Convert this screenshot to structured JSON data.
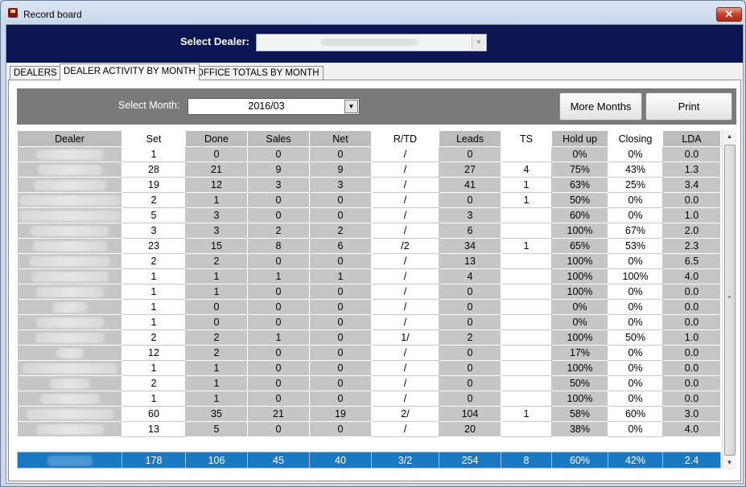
{
  "window": {
    "title": "Record board",
    "close": "✕"
  },
  "header": {
    "dealer_label": "Select Dealer:"
  },
  "tabs": [
    {
      "label": "DEALERS"
    },
    {
      "label": "DEALER ACTIVITY BY MONTH"
    },
    {
      "label": "OFFICE TOTALS BY MONTH"
    }
  ],
  "toolbar": {
    "month_label": "Select Month:",
    "month_value": "2016/03",
    "more_months": "More Months",
    "print": "Print"
  },
  "grid": {
    "columns": [
      "Dealer",
      "Set",
      "Done",
      "Sales",
      "Net",
      "R/TD",
      "Leads",
      "TS",
      "Hold up",
      "Closing",
      "LDA"
    ],
    "rows": [
      [
        "",
        "1",
        "0",
        "0",
        "0",
        "/",
        "0",
        "",
        "0%",
        "0%",
        "0.0"
      ],
      [
        "",
        "28",
        "21",
        "9",
        "9",
        "/",
        "27",
        "4",
        "75%",
        "43%",
        "1.3"
      ],
      [
        "",
        "19",
        "12",
        "3",
        "3",
        "/",
        "41",
        "1",
        "63%",
        "25%",
        "3.4"
      ],
      [
        "",
        "2",
        "1",
        "0",
        "0",
        "/",
        "0",
        "1",
        "50%",
        "0%",
        "0.0"
      ],
      [
        "",
        "5",
        "3",
        "0",
        "0",
        "/",
        "3",
        "",
        "60%",
        "0%",
        "1.0"
      ],
      [
        "",
        "3",
        "3",
        "2",
        "2",
        "/",
        "6",
        "",
        "100%",
        "67%",
        "2.0"
      ],
      [
        "",
        "23",
        "15",
        "8",
        "6",
        "/2",
        "34",
        "1",
        "65%",
        "53%",
        "2.3"
      ],
      [
        "",
        "2",
        "2",
        "0",
        "0",
        "/",
        "13",
        "",
        "100%",
        "0%",
        "6.5"
      ],
      [
        "",
        "1",
        "1",
        "1",
        "1",
        "/",
        "4",
        "",
        "100%",
        "100%",
        "4.0"
      ],
      [
        "",
        "1",
        "1",
        "0",
        "0",
        "/",
        "0",
        "",
        "100%",
        "0%",
        "0.0"
      ],
      [
        "",
        "1",
        "0",
        "0",
        "0",
        "/",
        "0",
        "",
        "0%",
        "0%",
        "0.0"
      ],
      [
        "",
        "1",
        "0",
        "0",
        "0",
        "/",
        "0",
        "",
        "0%",
        "0%",
        "0.0"
      ],
      [
        "",
        "2",
        "2",
        "1",
        "0",
        "1/",
        "2",
        "",
        "100%",
        "50%",
        "1.0"
      ],
      [
        "",
        "12",
        "2",
        "0",
        "0",
        "/",
        "0",
        "",
        "17%",
        "0%",
        "0.0"
      ],
      [
        "",
        "1",
        "1",
        "0",
        "0",
        "/",
        "0",
        "",
        "100%",
        "0%",
        "0.0"
      ],
      [
        "",
        "2",
        "1",
        "0",
        "0",
        "/",
        "0",
        "",
        "50%",
        "0%",
        "0.0"
      ],
      [
        "",
        "1",
        "1",
        "0",
        "0",
        "/",
        "0",
        "",
        "100%",
        "0%",
        "0.0"
      ],
      [
        "",
        "60",
        "35",
        "21",
        "19",
        "2/",
        "104",
        "1",
        "58%",
        "60%",
        "3.0"
      ],
      [
        "",
        "13",
        "5",
        "0",
        "0",
        "/",
        "20",
        "",
        "38%",
        "0%",
        "4.0"
      ]
    ],
    "total": [
      "",
      "178",
      "106",
      "45",
      "40",
      "3/2",
      "254",
      "8",
      "60%",
      "42%",
      "2.4"
    ]
  },
  "scrollbar": {
    "up": "▲",
    "down": "▼",
    "grip": "≡"
  }
}
